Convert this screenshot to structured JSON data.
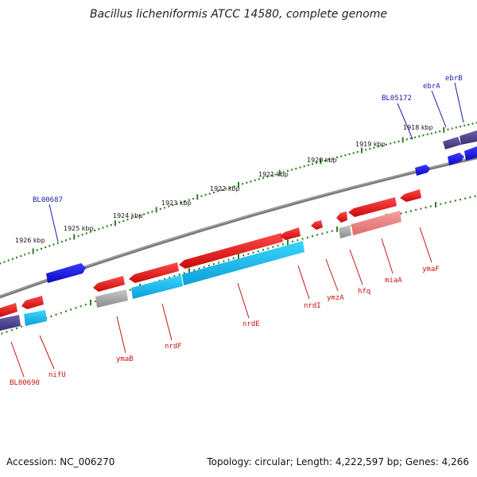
{
  "map": {
    "title": "Bacillus licheniformis ATCC 14580, complete genome",
    "accession": "Accession: NC_006270",
    "summary": "Topology: circular; Length: 4,222,597 bp; Genes: 4,266"
  },
  "scale": {
    "ticks": [
      "1918 kbp",
      "1919 kbp",
      "1920 kbp",
      "1921 kbp",
      "1922 kbp",
      "1923 kbp",
      "1924 kbp",
      "1925 kbp",
      "1926 kbp"
    ]
  },
  "genes": {
    "forward_labels": [
      "BL05172",
      "ebrA",
      "ebrB",
      "BL00687"
    ],
    "reverse_labels": [
      "nrdI",
      "ymzA",
      "hfq",
      "miaA",
      "ymaF",
      "nrdE",
      "nrdF",
      "ymaB",
      "nifU",
      "BL00690"
    ]
  },
  "colors": {
    "forward_cds": "#1a1ae6",
    "forward_hit": "#4a3f8c",
    "reverse_cds": "#e01414",
    "reverse_hit_light": "#ee7c7c",
    "reverse_hit_cyan": "#18b4e8",
    "reverse_hit_gray": "#a0a0a0",
    "backbone": "#808080",
    "tick_green": "#2e7d1e",
    "label_blue": "#1a1aa8",
    "label_red": "#c81212"
  }
}
